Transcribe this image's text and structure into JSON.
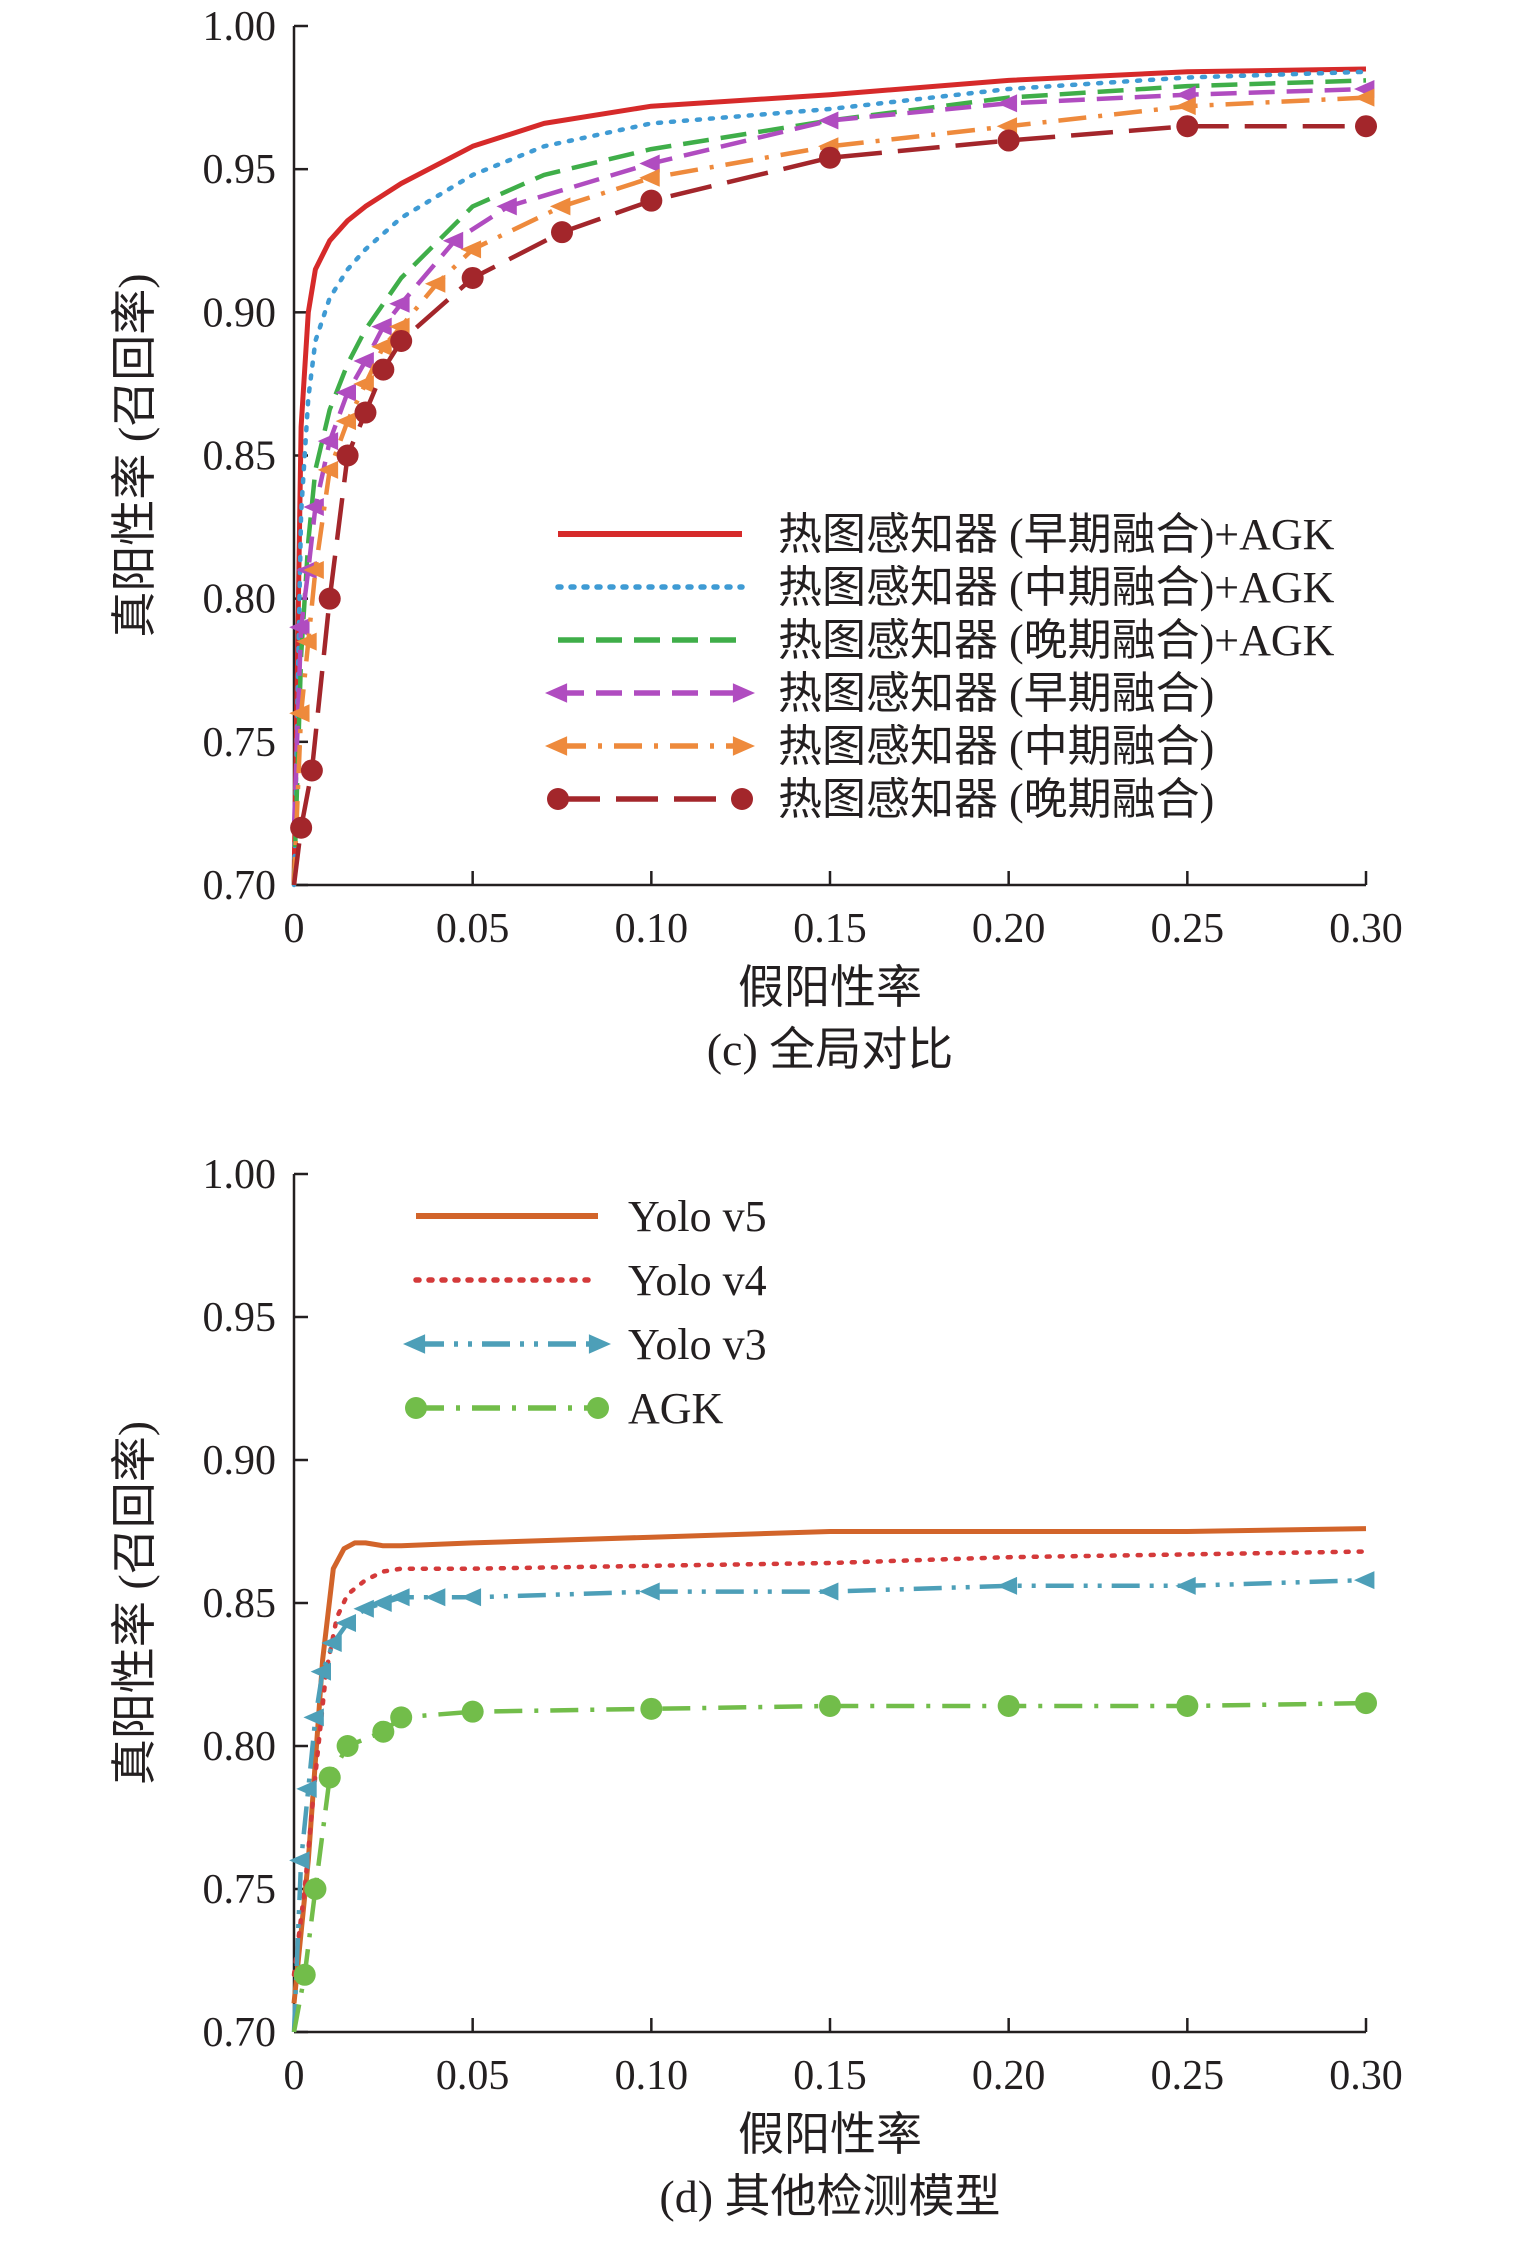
{
  "chart_data": [
    {
      "type": "line",
      "caption": "(c) 全局对比",
      "xlabel": "假阳性率",
      "ylabel": "真阳性率 (召回率)",
      "xlim": [
        0,
        0.3
      ],
      "ylim": [
        0.7,
        1.0
      ],
      "xticks": [
        "0",
        "0.05",
        "0.10",
        "0.15",
        "0.20",
        "0.25",
        "0.30"
      ],
      "yticks": [
        "0.70",
        "0.75",
        "0.80",
        "0.85",
        "0.90",
        "0.95",
        "1.00"
      ],
      "grid": false,
      "legend_position": "center-right",
      "series": [
        {
          "name": "热图感知器 (早期融合)+AGK",
          "color": "#d62a2a",
          "style": "solid",
          "marker": "none",
          "x": [
            0,
            0.002,
            0.004,
            0.006,
            0.01,
            0.015,
            0.02,
            0.03,
            0.05,
            0.07,
            0.1,
            0.15,
            0.2,
            0.25,
            0.3
          ],
          "y": [
            0.7,
            0.86,
            0.9,
            0.915,
            0.925,
            0.932,
            0.937,
            0.945,
            0.958,
            0.966,
            0.972,
            0.976,
            0.981,
            0.984,
            0.985
          ]
        },
        {
          "name": "热图感知器 (中期融合)+AGK",
          "color": "#3f9bd4",
          "style": "dotted",
          "marker": "none",
          "x": [
            0,
            0.002,
            0.004,
            0.006,
            0.01,
            0.015,
            0.02,
            0.03,
            0.05,
            0.07,
            0.1,
            0.15,
            0.2,
            0.25,
            0.3
          ],
          "y": [
            0.7,
            0.83,
            0.87,
            0.89,
            0.905,
            0.915,
            0.922,
            0.933,
            0.948,
            0.958,
            0.966,
            0.971,
            0.978,
            0.982,
            0.984
          ]
        },
        {
          "name": "热图感知器 (晚期融合)+AGK",
          "color": "#3fae49",
          "style": "dashed",
          "marker": "none",
          "x": [
            0,
            0.002,
            0.004,
            0.006,
            0.01,
            0.015,
            0.02,
            0.03,
            0.05,
            0.07,
            0.1,
            0.15,
            0.2,
            0.25,
            0.3
          ],
          "y": [
            0.7,
            0.78,
            0.82,
            0.845,
            0.866,
            0.882,
            0.894,
            0.912,
            0.937,
            0.948,
            0.957,
            0.967,
            0.975,
            0.979,
            0.981
          ]
        },
        {
          "name": "热图感知器 (早期融合)",
          "color": "#b04cc0",
          "style": "dashed",
          "marker": "arrow",
          "x": [
            0,
            0.002,
            0.004,
            0.006,
            0.01,
            0.015,
            0.02,
            0.025,
            0.03,
            0.045,
            0.06,
            0.1,
            0.15,
            0.2,
            0.25,
            0.3
          ],
          "y": [
            0.72,
            0.79,
            0.81,
            0.832,
            0.855,
            0.872,
            0.883,
            0.895,
            0.903,
            0.925,
            0.937,
            0.952,
            0.967,
            0.973,
            0.976,
            0.978
          ]
        },
        {
          "name": "热图感知器 (中期融合)",
          "color": "#ee8a3c",
          "style": "dashdot",
          "marker": "arrow",
          "x": [
            0,
            0.002,
            0.004,
            0.006,
            0.01,
            0.015,
            0.02,
            0.025,
            0.03,
            0.04,
            0.05,
            0.075,
            0.1,
            0.15,
            0.2,
            0.25,
            0.3
          ],
          "y": [
            0.7,
            0.76,
            0.785,
            0.81,
            0.845,
            0.862,
            0.875,
            0.888,
            0.895,
            0.91,
            0.922,
            0.937,
            0.947,
            0.958,
            0.965,
            0.972,
            0.975
          ]
        },
        {
          "name": "热图感知器 (晚期融合)",
          "color": "#a3262b",
          "style": "longdash",
          "marker": "dot",
          "x": [
            0,
            0.002,
            0.005,
            0.01,
            0.015,
            0.02,
            0.025,
            0.03,
            0.05,
            0.075,
            0.1,
            0.15,
            0.2,
            0.25,
            0.3
          ],
          "y": [
            0.7,
            0.72,
            0.74,
            0.8,
            0.85,
            0.865,
            0.88,
            0.89,
            0.912,
            0.928,
            0.939,
            0.954,
            0.96,
            0.965,
            0.965
          ]
        }
      ]
    },
    {
      "type": "line",
      "caption": "(d) 其他检测模型",
      "xlabel": "假阳性率",
      "ylabel": "真阳性率 (召回率)",
      "xlim": [
        0,
        0.3
      ],
      "ylim": [
        0.7,
        1.0
      ],
      "xticks": [
        "0",
        "0.05",
        "0.10",
        "0.15",
        "0.20",
        "0.25",
        "0.30"
      ],
      "yticks": [
        "0.70",
        "0.75",
        "0.80",
        "0.85",
        "0.90",
        "0.95",
        "1.00"
      ],
      "grid": false,
      "legend_position": "top-left",
      "series": [
        {
          "name": "Yolo v5",
          "color": "#d2642a",
          "style": "solid",
          "marker": "none",
          "x": [
            0,
            0.004,
            0.008,
            0.011,
            0.014,
            0.017,
            0.02,
            0.025,
            0.03,
            0.05,
            0.1,
            0.15,
            0.2,
            0.25,
            0.3
          ],
          "y": [
            0.71,
            0.76,
            0.83,
            0.862,
            0.869,
            0.871,
            0.871,
            0.87,
            0.87,
            0.871,
            0.873,
            0.875,
            0.875,
            0.875,
            0.876
          ]
        },
        {
          "name": "Yolo v4",
          "color": "#d43a3a",
          "style": "dotted",
          "marker": "none",
          "x": [
            0,
            0.003,
            0.006,
            0.009,
            0.012,
            0.015,
            0.02,
            0.025,
            0.03,
            0.05,
            0.1,
            0.15,
            0.2,
            0.25,
            0.3
          ],
          "y": [
            0.72,
            0.75,
            0.79,
            0.826,
            0.845,
            0.853,
            0.858,
            0.861,
            0.862,
            0.862,
            0.863,
            0.864,
            0.866,
            0.867,
            0.868
          ]
        },
        {
          "name": "Yolo v3",
          "color": "#4d9fb8",
          "style": "dashdotdot",
          "marker": "arrow",
          "x": [
            0,
            0.002,
            0.004,
            0.006,
            0.008,
            0.011,
            0.015,
            0.02,
            0.025,
            0.03,
            0.04,
            0.05,
            0.1,
            0.15,
            0.2,
            0.25,
            0.3
          ],
          "y": [
            0.7,
            0.76,
            0.785,
            0.81,
            0.826,
            0.836,
            0.843,
            0.848,
            0.85,
            0.852,
            0.852,
            0.852,
            0.854,
            0.854,
            0.856,
            0.856,
            0.858
          ]
        },
        {
          "name": "AGK",
          "color": "#72bd4a",
          "style": "dashdot",
          "marker": "dot",
          "x": [
            0,
            0.003,
            0.006,
            0.01,
            0.015,
            0.025,
            0.03,
            0.05,
            0.1,
            0.15,
            0.2,
            0.25,
            0.3
          ],
          "y": [
            0.7,
            0.72,
            0.75,
            0.789,
            0.8,
            0.805,
            0.81,
            0.812,
            0.813,
            0.814,
            0.814,
            0.814,
            0.815
          ]
        }
      ]
    }
  ]
}
